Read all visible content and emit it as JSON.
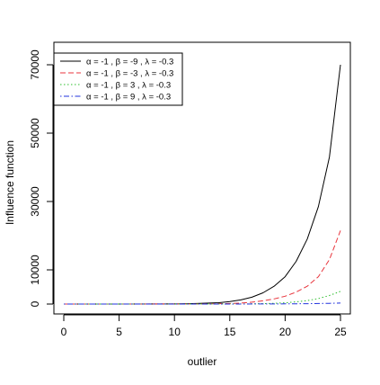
{
  "chart_data": {
    "type": "line",
    "title": "",
    "xlabel": "outlier",
    "ylabel": "Influence function",
    "xlim": [
      0,
      25
    ],
    "ylim": [
      0,
      70000
    ],
    "x_ticks": [
      0,
      5,
      10,
      15,
      20,
      25
    ],
    "y_ticks": [
      0,
      10000,
      30000,
      50000,
      70000
    ],
    "grid": false,
    "legend_position": "top-left",
    "series": [
      {
        "name": "α = -1 ,  β = -9 ,  λ = -0.3",
        "color": "#000000",
        "dash": "solid",
        "x": [
          0,
          10,
          12,
          14,
          15,
          16,
          17,
          18,
          19,
          20,
          21,
          22,
          23,
          24,
          25
        ],
        "values": [
          0,
          30,
          150,
          400,
          700,
          1200,
          2000,
          3300,
          5200,
          8000,
          12500,
          19000,
          28500,
          43000,
          70000
        ]
      },
      {
        "name": "α = -1 ,  β = -3 ,  λ = -0.3",
        "color": "#e8353d",
        "dash": "dashed",
        "x": [
          0,
          12,
          15,
          16,
          17,
          18,
          19,
          20,
          21,
          22,
          23,
          24,
          25
        ],
        "values": [
          0,
          20,
          150,
          300,
          550,
          950,
          1500,
          2300,
          3500,
          5200,
          8000,
          13000,
          21500
        ]
      },
      {
        "name": "α = -1 ,  β = 3 ,  λ = -0.3",
        "color": "#2fbf2f",
        "dash": "dotted",
        "x": [
          0,
          15,
          17,
          18,
          19,
          20,
          21,
          22,
          23,
          24,
          25
        ],
        "values": [
          0,
          15,
          60,
          120,
          220,
          380,
          650,
          1000,
          1600,
          2500,
          3700
        ]
      },
      {
        "name": "α = -1 ,  β = 9 ,  λ = -0.3",
        "color": "#2233dd",
        "dash": "dashdot",
        "x": [
          0,
          15,
          18,
          20,
          22,
          23,
          24,
          25
        ],
        "values": [
          0,
          5,
          20,
          50,
          100,
          150,
          220,
          300
        ]
      }
    ]
  }
}
